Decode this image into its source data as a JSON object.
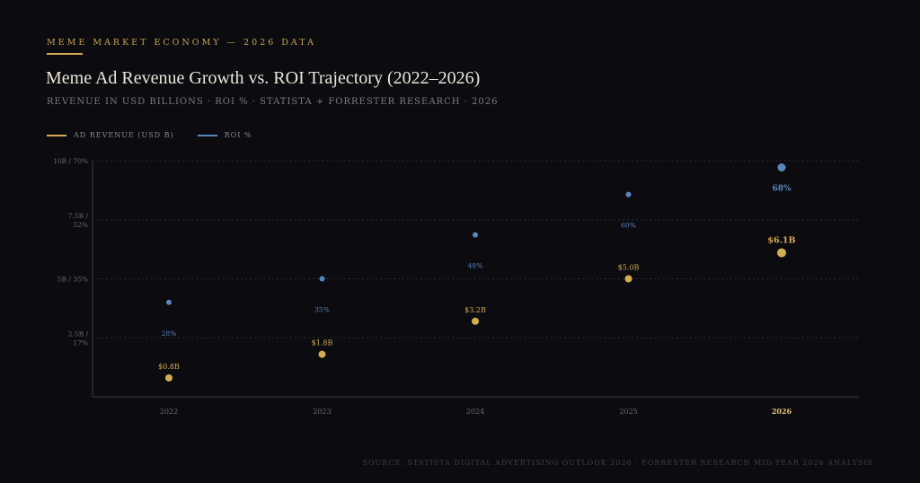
{
  "header": {
    "kicker": "MEME MARKET ECONOMY — 2026 DATA",
    "title": "Meme Ad Revenue Growth vs. ROI Trajectory (2022–2026)",
    "subtitle": "REVENUE IN USD BILLIONS · ROI % · STATISTA + FORRESTER RESEARCH · 2026"
  },
  "legend": [
    {
      "label": "AD REVENUE (USD B)",
      "color": "#d4ae4e"
    },
    {
      "label": "ROI %",
      "color": "#5b86bd"
    }
  ],
  "colors": {
    "revenue": "#d4ae4e",
    "roi": "#5b86bd",
    "axis": "#3a3a44",
    "grid": "#2a2a33",
    "tick": "#6a6872",
    "highlight_tick": "#e3c06a"
  },
  "footer": {
    "source": "SOURCE: STATISTA DIGITAL ADVERTISING OUTLOOK 2026 · FORRESTER RESEARCH MID-YEAR 2026 ANALYSIS"
  },
  "chart_data": {
    "type": "scatter",
    "title": "Meme Ad Revenue Growth vs. ROI Trajectory (2022–2026)",
    "x": [
      "2022",
      "2023",
      "2024",
      "2025",
      "2026"
    ],
    "highlight_x": "2026",
    "y_ticks": [
      {
        "value": 10,
        "lines": [
          "10B / 70%"
        ]
      },
      {
        "value": 7.5,
        "lines": [
          "7.5B /",
          "52%"
        ]
      },
      {
        "value": 5,
        "lines": [
          "5B / 35%"
        ]
      },
      {
        "value": 2.5,
        "lines": [
          "2.5B /",
          "17%"
        ]
      }
    ],
    "ylim": [
      0,
      10
    ],
    "grid": true,
    "legend_position": "top-left",
    "series": [
      {
        "name": "AD REVENUE (USD B)",
        "values": [
          0.8,
          1.8,
          3.2,
          5.0,
          6.1
        ],
        "labels": [
          "$0.8B",
          "$1.8B",
          "$3.2B",
          "$5.0B",
          "$6.1B"
        ]
      },
      {
        "name": "ROI %",
        "values": [
          28,
          35,
          48,
          60,
          68
        ],
        "labels": [
          "28%",
          "35%",
          "48%",
          "60%",
          "68%"
        ]
      }
    ]
  }
}
